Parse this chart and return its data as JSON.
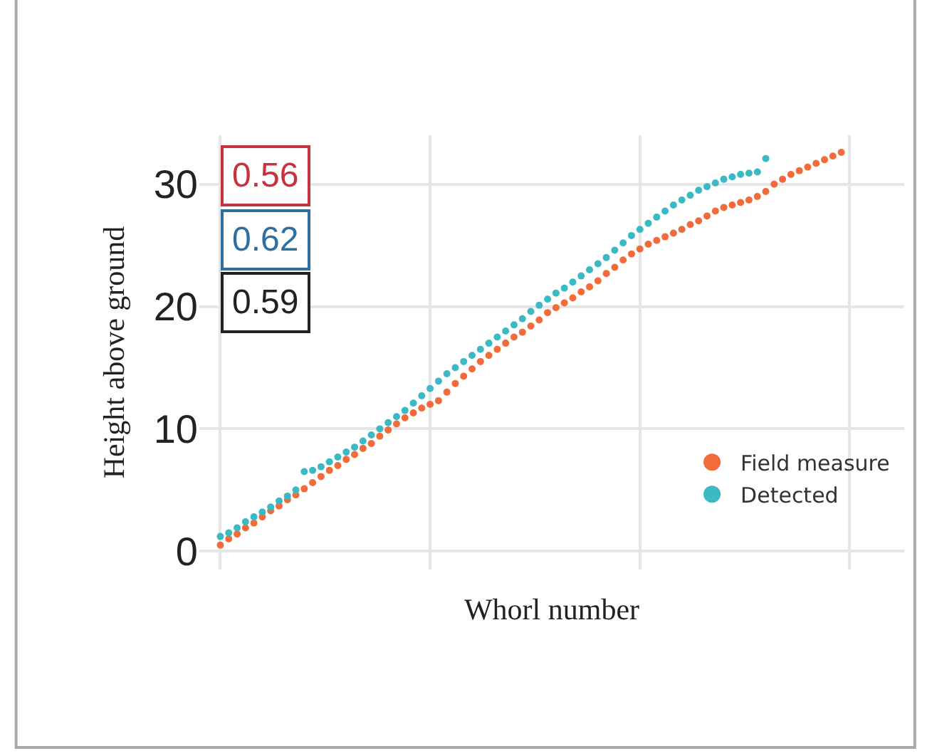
{
  "chart_data": {
    "type": "scatter",
    "xlabel": "Whorl number",
    "ylabel": "Height above ground",
    "categories": [
      null,
      null,
      null,
      null,
      null,
      null,
      null,
      null,
      null,
      null,
      null,
      null,
      null,
      null,
      null,
      null,
      null,
      null,
      null,
      null,
      null,
      null,
      null,
      null,
      null,
      null,
      null,
      null,
      null,
      null,
      null,
      null,
      null,
      null,
      null,
      null,
      null,
      null,
      null,
      null,
      null,
      null,
      null,
      null,
      null,
      null,
      null,
      null,
      null,
      null,
      null,
      null,
      null,
      null,
      null,
      null,
      null,
      null,
      null,
      null,
      null,
      null,
      null,
      null,
      null,
      null,
      null,
      null,
      null,
      null,
      null,
      null,
      null,
      null,
      null,
      null,
      null,
      null,
      null,
      null,
      null,
      null,
      null,
      null
    ],
    "series": [
      {
        "name": "Field measure",
        "color": "#f26b3a",
        "values": [
          null,
          null,
          0.5,
          1.0,
          1.4,
          1.9,
          2.3,
          2.8,
          3.3,
          3.7,
          4.2,
          4.6,
          5.1,
          5.6,
          6.1,
          6.6,
          7.0,
          7.5,
          7.9,
          8.4,
          8.8,
          9.4,
          9.9,
          10.4,
          10.9,
          11.3,
          11.7,
          12.0,
          12.3,
          13.0,
          13.7,
          14.3,
          14.9,
          15.5,
          16.0,
          16.5,
          17.0,
          17.5,
          17.9,
          18.4,
          18.9,
          19.5,
          19.9,
          20.3,
          20.7,
          21.2,
          21.6,
          22.1,
          22.7,
          23.2,
          23.8,
          24.3,
          24.7,
          25.1,
          25.4,
          25.7,
          26.0,
          26.3,
          26.7,
          27.0,
          27.4,
          27.8,
          28.1,
          28.3,
          28.5,
          28.7,
          29.0,
          29.4,
          30.0,
          30.4,
          30.8,
          31.1,
          31.4,
          31.7,
          32.0,
          32.3,
          32.6,
          null,
          null,
          null,
          null,
          null,
          null,
          null
        ]
      },
      {
        "name": "Detected",
        "color": "#3bbac6",
        "values": [
          null,
          null,
          1.2,
          1.5,
          1.9,
          2.4,
          2.8,
          3.2,
          3.6,
          4.1,
          4.5,
          5.0,
          6.5,
          6.6,
          6.9,
          7.3,
          7.7,
          8.1,
          8.5,
          9.0,
          9.5,
          10.0,
          10.5,
          11.0,
          11.5,
          12.1,
          12.7,
          13.3,
          13.9,
          14.5,
          15.0,
          15.5,
          16.0,
          16.5,
          17.0,
          17.5,
          18.0,
          18.5,
          19.0,
          19.6,
          20.1,
          20.6,
          21.1,
          21.5,
          22.0,
          22.5,
          23.0,
          23.5,
          24.0,
          24.6,
          25.2,
          25.8,
          26.3,
          26.8,
          27.3,
          27.8,
          28.3,
          28.7,
          29.1,
          29.5,
          29.8,
          30.1,
          30.4,
          30.6,
          30.8,
          30.9,
          31.0,
          32.1,
          null,
          null,
          null,
          null,
          null,
          null,
          null,
          null,
          null,
          null,
          null,
          null,
          null,
          null,
          null,
          null
        ]
      }
    ],
    "ylim": [
      -1.5,
      34
    ],
    "yticks": [
      0,
      10,
      20,
      30
    ],
    "annotations": [
      "0.56",
      "0.62",
      "0.59"
    ],
    "grid": true,
    "legend": "bottom right",
    "marker": "circle"
  }
}
